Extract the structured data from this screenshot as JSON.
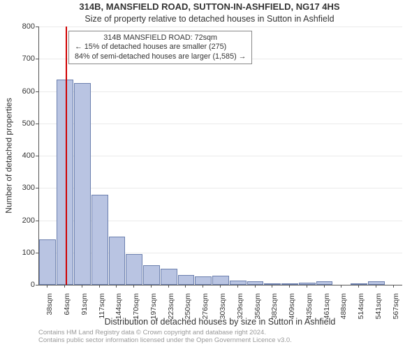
{
  "chart": {
    "type": "bar",
    "title_main": "314B, MANSFIELD ROAD, SUTTON-IN-ASHFIELD, NG17 4HS",
    "title_sub": "Size of property relative to detached houses in Sutton in Ashfield",
    "x_axis_title": "Distribution of detached houses by size in Sutton in Ashfield",
    "y_axis_title": "Number of detached properties",
    "y_min": 0,
    "y_max": 800,
    "y_tick_step": 100,
    "bar_fill": "#b9c4e2",
    "bar_border": "#6b7fae",
    "marker_color": "#d00000",
    "grid_color": "#555555",
    "bg_color": "#ffffff",
    "title_fontsize": 13,
    "label_fontsize": 11,
    "axis_title_fontsize": 12.5,
    "marker_category_index": 1,
    "info_box": {
      "line1": "314B MANSFIELD ROAD: 72sqm",
      "line2": "← 15% of detached houses are smaller (275)",
      "line3": "84% of semi-detached houses are larger (1,585) →"
    },
    "categories": [
      "38sqm",
      "64sqm",
      "91sqm",
      "117sqm",
      "144sqm",
      "170sqm",
      "197sqm",
      "223sqm",
      "250sqm",
      "276sqm",
      "303sqm",
      "329sqm",
      "356sqm",
      "382sqm",
      "409sqm",
      "435sqm",
      "461sqm",
      "488sqm",
      "514sqm",
      "541sqm",
      "567sqm"
    ],
    "values": [
      140,
      635,
      625,
      280,
      150,
      95,
      60,
      50,
      30,
      25,
      28,
      12,
      10,
      4,
      4,
      6,
      10,
      0,
      5,
      10,
      0
    ],
    "footer_line1": "Contains HM Land Registry data © Crown copyright and database right 2024.",
    "footer_line2": "Contains public sector information licensed under the Open Government Licence v3.0."
  }
}
